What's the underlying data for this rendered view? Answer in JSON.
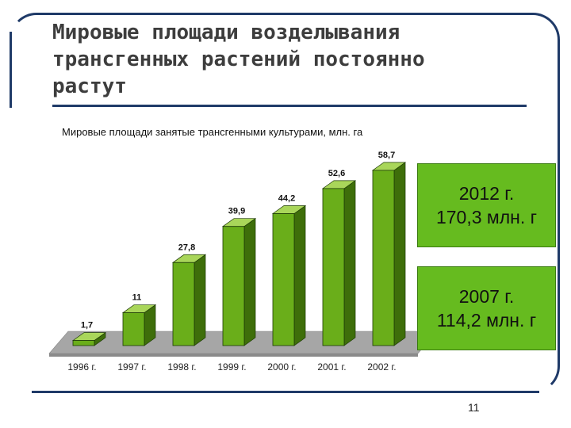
{
  "slide": {
    "title_lines": [
      "Мировые площади возделывания",
      "трансгенных растений постоянно",
      "растут"
    ],
    "page_number": "11"
  },
  "info_boxes": [
    {
      "line1": "2012 г.",
      "line2": "170,3 млн. г"
    },
    {
      "line1": "2007 г.",
      "line2": "114,2 млн. г"
    }
  ],
  "colors": {
    "bar_front": "#6aae1a",
    "bar_side": "#3e6e0a",
    "bar_top": "#a9d65a",
    "floor": "#a6a6a6",
    "frame": "#1f3a68",
    "info_box": "#66bb1f"
  },
  "chart_data": {
    "type": "bar",
    "title": "Мировые площади занятые трансгенными культурами, млн. га",
    "categories": [
      "1996 г.",
      "1997 г.",
      "1998 г.",
      "1999 г.",
      "2000 г.",
      "2001 г.",
      "2002 г."
    ],
    "values": [
      1.7,
      11,
      27.8,
      39.9,
      44.2,
      52.6,
      58.7
    ],
    "value_labels": [
      "1,7",
      "11",
      "27,8",
      "39,9",
      "44,2",
      "52,6",
      "58,7"
    ],
    "ylim": [
      0,
      60
    ],
    "grid": false,
    "legend": "none",
    "style": "3d-columns"
  }
}
